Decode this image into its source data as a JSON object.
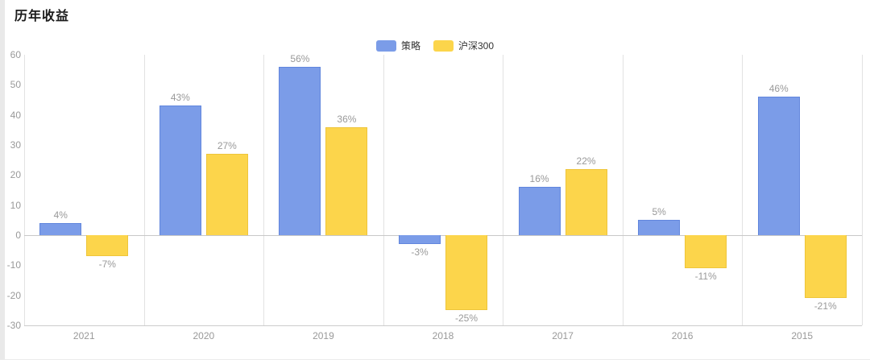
{
  "page": {
    "title": "历年收益"
  },
  "chart_data": {
    "type": "bar",
    "title": "历年收益",
    "categories": [
      "2021",
      "2020",
      "2019",
      "2018",
      "2017",
      "2016",
      "2015"
    ],
    "series": [
      {
        "id": "strategy",
        "name": "策略",
        "color": "#7b9ce8",
        "border": "#6186dd",
        "values": [
          4,
          43,
          56,
          -3,
          16,
          5,
          46
        ]
      },
      {
        "id": "csi300",
        "name": "沪深300",
        "color": "#fcd54b",
        "border": "#eec53a",
        "values": [
          -7,
          27,
          36,
          -25,
          22,
          -11,
          -21
        ]
      }
    ],
    "ylim": [
      -30,
      60
    ],
    "ytick_step": 10,
    "yticks": [
      -30,
      -20,
      -10,
      0,
      10,
      20,
      30,
      40,
      50,
      60
    ],
    "value_suffix": "%",
    "label_color": "#999999",
    "axis_label_color": "#999999",
    "grid": "vertical-split-lines",
    "legend_position": "top-center"
  }
}
